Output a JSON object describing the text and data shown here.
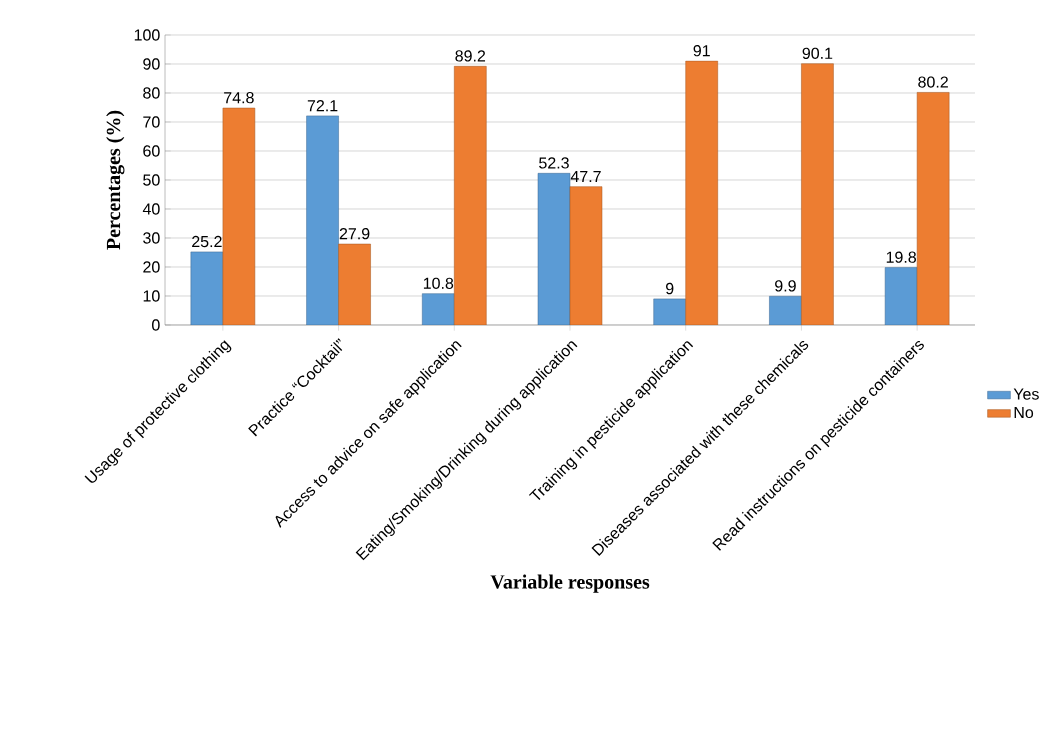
{
  "chart_data": {
    "type": "bar",
    "xlabel": "Variable responses",
    "ylabel": "Percentages (%)",
    "categories": [
      "Usage of protective clothing",
      "Practice “Cocktail”",
      "Access to advice on safe application",
      "Eating/Smoking/Drinking during application",
      "Training in pesticide application",
      "Diseases associated with these chemicals",
      "Read instructions on pesticide containers"
    ],
    "series": [
      {
        "name": "Yes",
        "color": "#5b9bd5",
        "values": [
          25.2,
          72.1,
          10.8,
          52.3,
          9,
          9.9,
          19.8
        ]
      },
      {
        "name": "No",
        "color": "#ed7d31",
        "values": [
          74.8,
          27.9,
          89.2,
          47.7,
          91,
          90.1,
          80.2
        ]
      }
    ],
    "ylim": [
      0,
      100
    ],
    "yticks": [
      0,
      10,
      20,
      30,
      40,
      50,
      60,
      70,
      80,
      90,
      100
    ],
    "grid": "y",
    "legend": "right",
    "data_labels": true
  }
}
